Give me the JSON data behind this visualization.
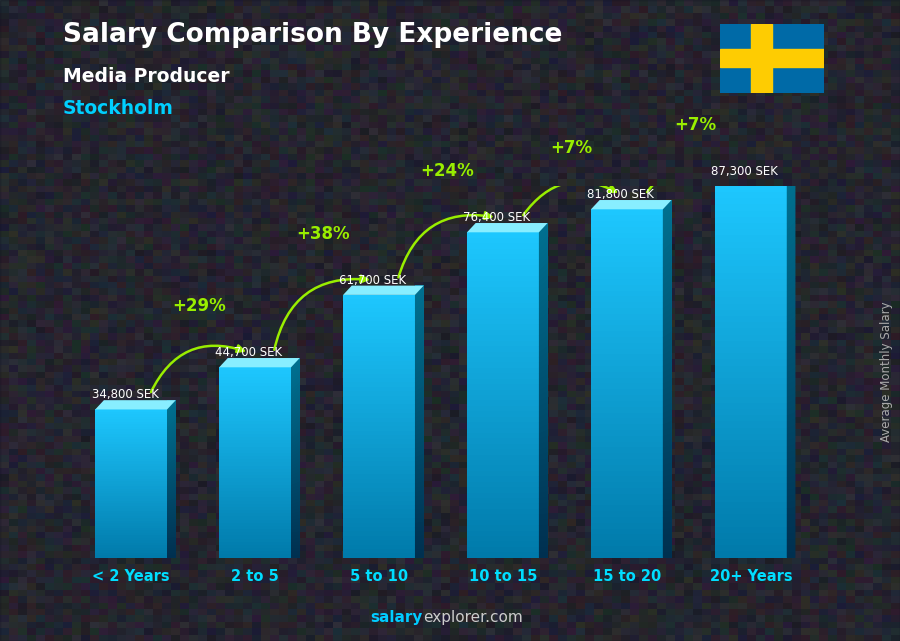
{
  "title": "Salary Comparison By Experience",
  "subtitle": "Media Producer",
  "city": "Stockholm",
  "ylabel": "Average Monthly Salary",
  "watermark_bold": "salary",
  "watermark_regular": "explorer.com",
  "categories": [
    "< 2 Years",
    "2 to 5",
    "5 to 10",
    "10 to 15",
    "15 to 20",
    "20+ Years"
  ],
  "values": [
    34800,
    44700,
    61700,
    76400,
    81800,
    87300
  ],
  "value_labels": [
    "34,800 SEK",
    "44,700 SEK",
    "61,700 SEK",
    "76,400 SEK",
    "81,800 SEK",
    "87,300 SEK"
  ],
  "pct_changes": [
    null,
    "+29%",
    "+38%",
    "+24%",
    "+7%",
    "+7%"
  ],
  "bg_color": "#3a3a3a",
  "overlay_color": "#1a1a2e",
  "title_color": "#FFFFFF",
  "subtitle_color": "#FFFFFF",
  "city_color": "#00CFFF",
  "value_label_color": "#FFFFFF",
  "pct_color": "#99EE00",
  "arrow_color": "#99EE00",
  "watermark_color": "#00CCFF",
  "watermark_regular_color": "#CCCCCC",
  "ylabel_color": "#AAAAAA",
  "xticklabel_color": "#00DDFF",
  "flag_blue": "#006AA7",
  "flag_yellow": "#FECC02",
  "bar_front_top": "#1EC8FF",
  "bar_front_bottom": "#0088BB",
  "bar_side_top": "#0099CC",
  "bar_side_bottom": "#004466",
  "bar_top_color": "#55DDFF"
}
